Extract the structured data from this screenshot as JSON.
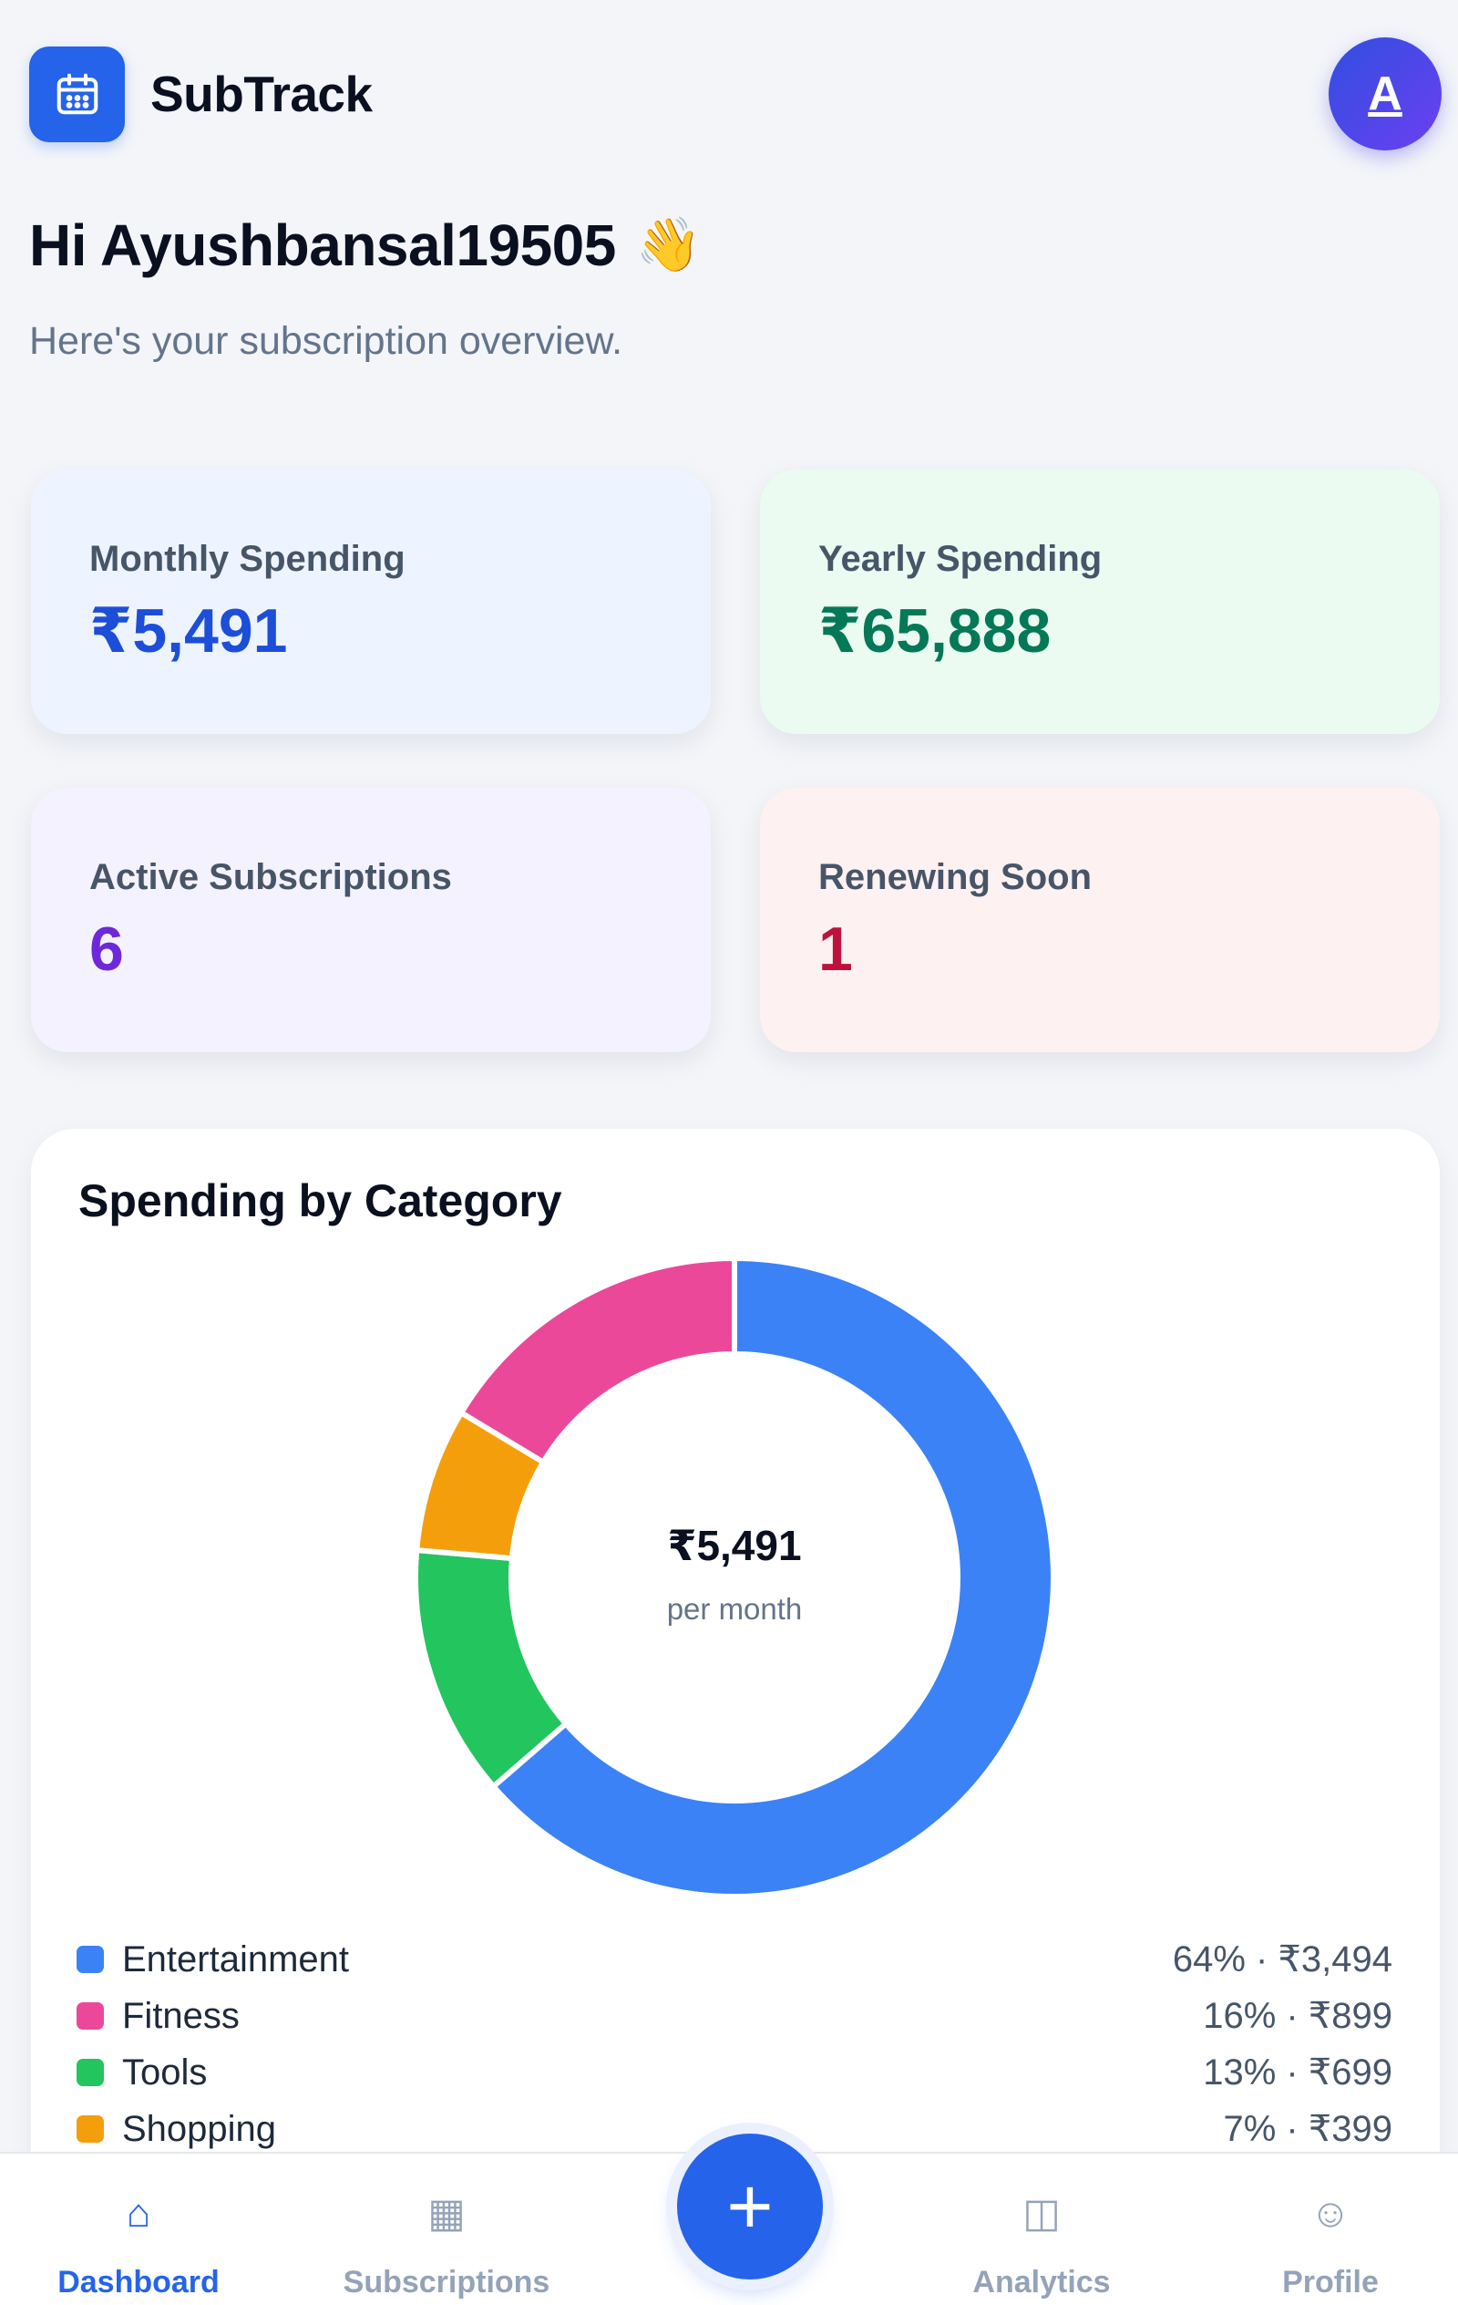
{
  "header": {
    "app_name": "SubTrack",
    "avatar_initial": "A"
  },
  "greeting": {
    "text": "Hi Ayushbansal19505",
    "emoji": "👋",
    "subtitle": "Here's your subscription overview."
  },
  "stats": {
    "monthly": {
      "label": "Monthly Spending",
      "value": "₹5,491"
    },
    "yearly": {
      "label": "Yearly Spending",
      "value": "₹65,888"
    },
    "active": {
      "label": "Active Subscriptions",
      "value": "6"
    },
    "renewing": {
      "label": "Renewing Soon",
      "value": "1"
    }
  },
  "category_card": {
    "title": "Spending by Category",
    "center_amount": "₹5,491",
    "center_label": "per month",
    "legend": [
      {
        "name": "Entertainment",
        "value": "64% · ₹3,494"
      },
      {
        "name": "Fitness",
        "value": "16% · ₹899"
      },
      {
        "name": "Tools",
        "value": "13% · ₹699"
      },
      {
        "name": "Shopping",
        "value": "7% · ₹399"
      }
    ]
  },
  "chart_data": {
    "type": "pie",
    "title": "Spending by Category",
    "categories": [
      "Entertainment",
      "Tools",
      "Shopping",
      "Fitness"
    ],
    "values": [
      3494,
      699,
      399,
      899
    ],
    "colors": [
      "#3b82f6",
      "#22c55e",
      "#f59e0b",
      "#ec4899"
    ],
    "center_text": "₹5,491"
  },
  "colors": {
    "entertainment": "#3b82f6",
    "fitness": "#ec4899",
    "tools": "#22c55e",
    "shopping": "#f59e0b",
    "accent": "#2563eb"
  },
  "nav": {
    "dashboard": {
      "label": "Dashboard",
      "icon": "home-icon"
    },
    "subscriptions": {
      "label": "Subscriptions",
      "icon": "grid-icon"
    },
    "add": {
      "label": "+",
      "icon": "plus-icon"
    },
    "analytics": {
      "label": "Analytics",
      "icon": "columns-icon"
    },
    "profile": {
      "label": "Profile",
      "icon": "smiley-icon"
    }
  }
}
